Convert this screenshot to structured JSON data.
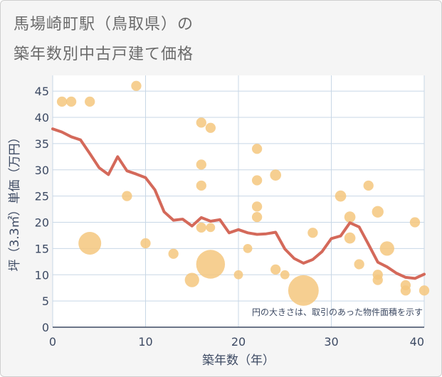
{
  "title_line1": "馬場崎町駅（鳥取県）の",
  "title_line2": "築年数別中古戸建て価格",
  "chart_data": {
    "type": "scatter",
    "title": "馬場崎町駅（鳥取県）の築年数別中古戸建て価格",
    "xlabel": "築年数（年）",
    "ylabel": "坪（3.3㎡）単価（万円）",
    "xlim": [
      0,
      40
    ],
    "ylim": [
      0,
      48
    ],
    "xticks": [
      0,
      10,
      20,
      30,
      40
    ],
    "yticks": [
      0,
      5,
      10,
      15,
      20,
      25,
      30,
      35,
      40,
      45
    ],
    "grid": true,
    "note": "円の大きさは、取引のあった物件面積を示す",
    "colors": {
      "bubble": "#f5c77e",
      "line": "#d4695a",
      "plot_bg": "#ffffff",
      "grid": "#c8d7e6"
    },
    "bubbles": [
      {
        "x": 1,
        "y": 43,
        "s": 1
      },
      {
        "x": 2,
        "y": 43,
        "s": 1
      },
      {
        "x": 4,
        "y": 43,
        "s": 1
      },
      {
        "x": 9,
        "y": 46,
        "s": 1
      },
      {
        "x": 4,
        "y": 16,
        "s": 5
      },
      {
        "x": 8,
        "y": 25,
        "s": 1
      },
      {
        "x": 10,
        "y": 16,
        "s": 1
      },
      {
        "x": 13,
        "y": 14,
        "s": 1
      },
      {
        "x": 15,
        "y": 9,
        "s": 2
      },
      {
        "x": 16,
        "y": 39,
        "s": 1
      },
      {
        "x": 16,
        "y": 31,
        "s": 1
      },
      {
        "x": 16,
        "y": 27,
        "s": 1
      },
      {
        "x": 16,
        "y": 19,
        "s": 1
      },
      {
        "x": 17,
        "y": 38,
        "s": 1
      },
      {
        "x": 17,
        "y": 19,
        "s": 0.8
      },
      {
        "x": 17,
        "y": 12,
        "s": 8
      },
      {
        "x": 20,
        "y": 10,
        "s": 0.8
      },
      {
        "x": 21,
        "y": 15,
        "s": 0.8
      },
      {
        "x": 22,
        "y": 34,
        "s": 1
      },
      {
        "x": 22,
        "y": 28,
        "s": 1
      },
      {
        "x": 22,
        "y": 23,
        "s": 1
      },
      {
        "x": 22,
        "y": 21,
        "s": 1
      },
      {
        "x": 24,
        "y": 29,
        "s": 1.2
      },
      {
        "x": 24,
        "y": 11,
        "s": 1
      },
      {
        "x": 25,
        "y": 10,
        "s": 0.8
      },
      {
        "x": 27,
        "y": 7,
        "s": 9
      },
      {
        "x": 28,
        "y": 18,
        "s": 1
      },
      {
        "x": 31,
        "y": 25,
        "s": 1.2
      },
      {
        "x": 32,
        "y": 21,
        "s": 1.2
      },
      {
        "x": 32,
        "y": 17,
        "s": 1.2
      },
      {
        "x": 33,
        "y": 12,
        "s": 1
      },
      {
        "x": 34,
        "y": 27,
        "s": 1
      },
      {
        "x": 35,
        "y": 22,
        "s": 1.3
      },
      {
        "x": 35,
        "y": 10,
        "s": 1
      },
      {
        "x": 35,
        "y": 9,
        "s": 1
      },
      {
        "x": 36,
        "y": 15,
        "s": 2
      },
      {
        "x": 38,
        "y": 8,
        "s": 1
      },
      {
        "x": 38,
        "y": 7,
        "s": 1
      },
      {
        "x": 39,
        "y": 20,
        "s": 1
      },
      {
        "x": 40,
        "y": 7,
        "s": 1
      }
    ],
    "trend": {
      "x": [
        0,
        1,
        2,
        3,
        4,
        5,
        6,
        7,
        8,
        9,
        10,
        11,
        12,
        13,
        14,
        15,
        16,
        17,
        18,
        19,
        20,
        21,
        22,
        23,
        24,
        25,
        26,
        27,
        28,
        29,
        30,
        31,
        32,
        33,
        34,
        35,
        36,
        37,
        38,
        39,
        40
      ],
      "y": [
        37.8,
        37.2,
        36.3,
        35.7,
        33.1,
        30.4,
        29.1,
        32.5,
        29.8,
        29.2,
        28.5,
        26.2,
        22.0,
        20.4,
        20.6,
        19.3,
        20.9,
        20.2,
        20.5,
        18.0,
        18.6,
        18.0,
        17.7,
        17.8,
        18.1,
        14.9,
        13.1,
        12.2,
        12.9,
        14.4,
        16.9,
        17.4,
        19.9,
        19.1,
        15.8,
        12.4,
        11.5,
        10.3,
        9.5,
        9.3,
        10.1
      ]
    }
  }
}
